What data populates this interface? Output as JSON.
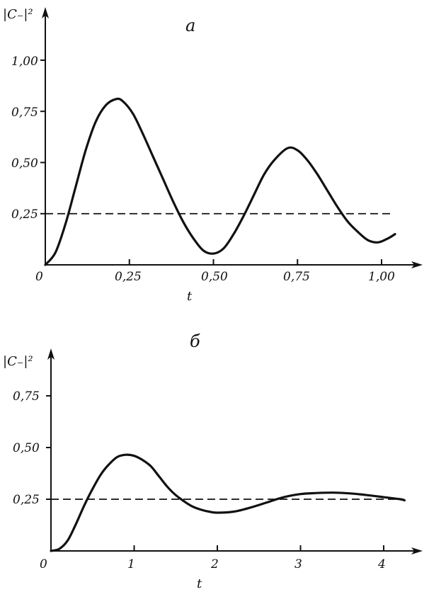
{
  "chart_data": [
    {
      "type": "line",
      "panel_label": "а",
      "ylabel": "|C₋|²",
      "xlabel": "t",
      "origin_label": "0",
      "xlim": [
        0,
        1.1
      ],
      "ylim": [
        0,
        1.15
      ],
      "x_ticks": [
        "0,25",
        "0,50",
        "0,75",
        "1,00"
      ],
      "y_ticks": [
        "0,25",
        "0,50",
        "0,75",
        "1,00"
      ],
      "dashed_reference": 0.25,
      "series": [
        {
          "x": [
            0,
            0.03,
            0.06,
            0.09,
            0.12,
            0.15,
            0.18,
            0.21,
            0.23,
            0.26,
            0.29,
            0.32,
            0.35,
            0.38,
            0.41,
            0.44,
            0.47,
            0.5,
            0.53,
            0.56,
            0.59,
            0.62,
            0.65,
            0.68,
            0.72,
            0.75,
            0.78,
            0.81,
            0.84,
            0.87,
            0.9,
            0.93,
            0.96,
            0.99,
            1.02,
            1.04
          ],
          "y": [
            0,
            0.06,
            0.2,
            0.38,
            0.56,
            0.7,
            0.78,
            0.81,
            0.8,
            0.74,
            0.64,
            0.53,
            0.42,
            0.31,
            0.21,
            0.13,
            0.07,
            0.055,
            0.08,
            0.15,
            0.24,
            0.34,
            0.44,
            0.51,
            0.57,
            0.56,
            0.51,
            0.44,
            0.36,
            0.28,
            0.21,
            0.16,
            0.12,
            0.11,
            0.13,
            0.15
          ]
        }
      ]
    },
    {
      "type": "line",
      "panel_label": "б",
      "ylabel": "|C₋|²",
      "xlabel": "t",
      "origin_label": "0",
      "xlim": [
        0,
        4.5
      ],
      "ylim": [
        0,
        0.9
      ],
      "x_ticks": [
        "1",
        "2",
        "3",
        "4"
      ],
      "y_ticks": [
        "0,25",
        "0,50",
        "0,75"
      ],
      "dashed_reference": 0.25,
      "series": [
        {
          "x": [
            0,
            0.1,
            0.2,
            0.3,
            0.4,
            0.5,
            0.6,
            0.7,
            0.8,
            0.9,
            1.0,
            1.1,
            1.2,
            1.3,
            1.4,
            1.5,
            1.6,
            1.7,
            1.8,
            1.9,
            2.0,
            2.2,
            2.4,
            2.6,
            2.8,
            3.0,
            3.2,
            3.4,
            3.6,
            3.8,
            4.0,
            4.2,
            4.25
          ],
          "y": [
            0,
            0.01,
            0.05,
            0.13,
            0.22,
            0.3,
            0.37,
            0.42,
            0.455,
            0.465,
            0.46,
            0.44,
            0.41,
            0.36,
            0.31,
            0.27,
            0.24,
            0.215,
            0.2,
            0.19,
            0.185,
            0.19,
            0.21,
            0.235,
            0.26,
            0.275,
            0.28,
            0.282,
            0.278,
            0.27,
            0.26,
            0.25,
            0.245
          ]
        }
      ]
    }
  ]
}
